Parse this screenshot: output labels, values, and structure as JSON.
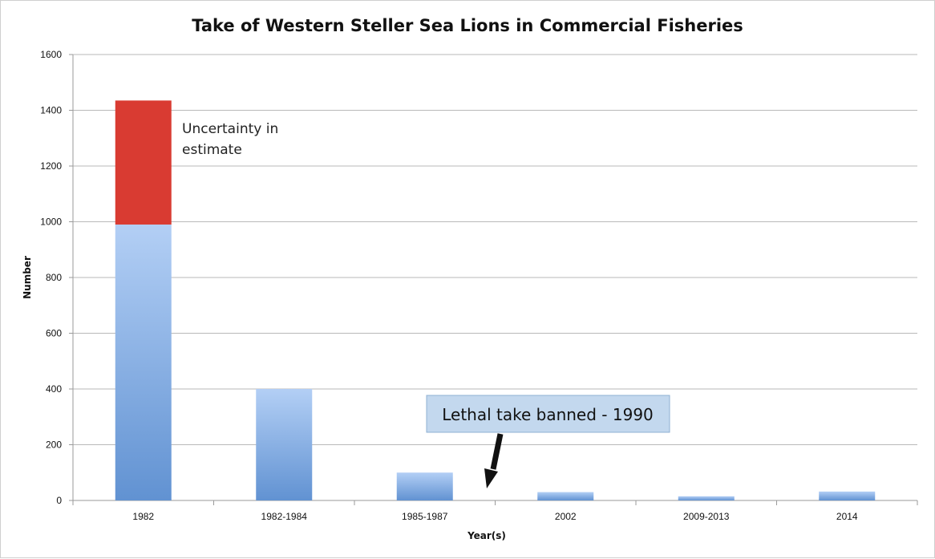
{
  "chart_data": {
    "type": "bar",
    "title": "Take of Western Steller Sea Lions in Commercial Fisheries",
    "xlabel": "Year(s)",
    "ylabel": "Number",
    "ylim": [
      0,
      1600
    ],
    "yticks": [
      0,
      200,
      400,
      600,
      800,
      1000,
      1200,
      1400,
      1600
    ],
    "grid": true,
    "stacked": true,
    "categories": [
      "1982",
      "1982-1984",
      "1985-1987",
      "2002",
      "2009-2013",
      "2014"
    ],
    "series": [
      {
        "values": [
          990,
          400,
          100,
          30,
          15,
          32
        ],
        "color": "#7fa6dd"
      },
      {
        "values": [
          445,
          0,
          0,
          0,
          0,
          0
        ],
        "color": "#d93b32"
      }
    ],
    "annotations": [
      {
        "text_lines": [
          "Uncertainty in",
          "estimate"
        ],
        "anchor_category": "1982"
      },
      {
        "text": "Lethal take banned - 1990",
        "style": "callout-box",
        "arrow": "down",
        "between_categories": [
          "1985-1987",
          "2002"
        ]
      }
    ],
    "colors": {
      "bar_top": "#b3cff5",
      "bar_bottom": "#6192d2",
      "uncertainty": "#d93b32",
      "callout_fill": "#c3d8ee",
      "callout_border": "#8fb0d3"
    }
  }
}
